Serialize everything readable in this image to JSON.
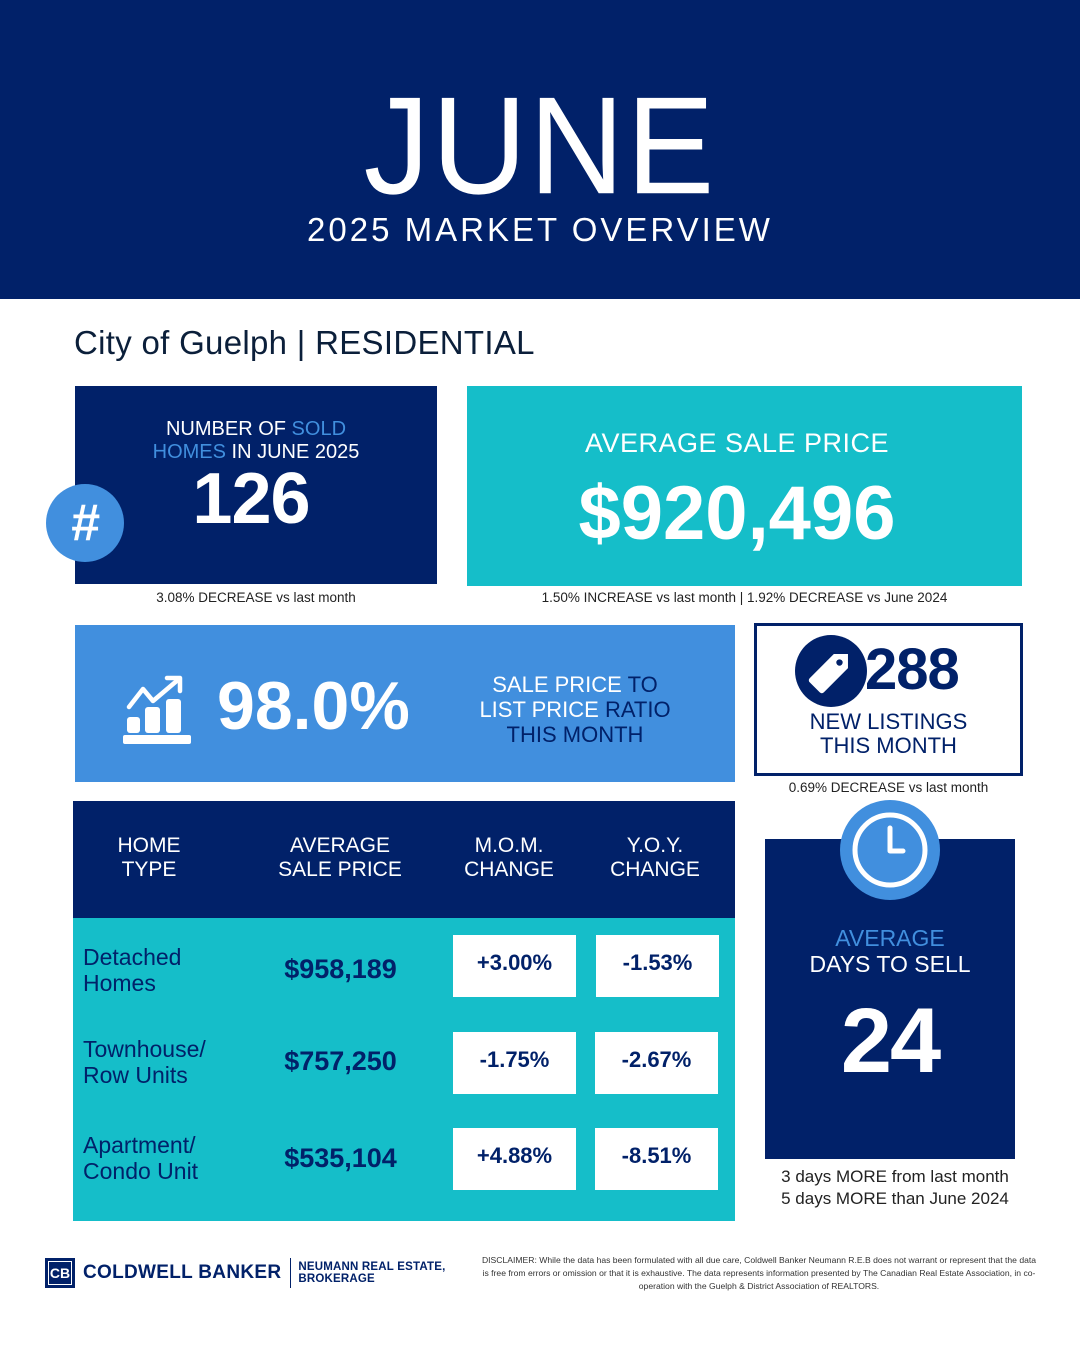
{
  "header": {
    "month": "JUNE",
    "subtitle": "2025 MARKET OVERVIEW"
  },
  "region": "City of Guelph | RESIDENTIAL",
  "sold": {
    "label_parts": [
      "NUMBER OF ",
      "SOLD",
      "HOMES",
      " IN JUNE 2025"
    ],
    "value": "126",
    "icon": "hash-icon",
    "note": "3.08% DECREASE vs last month"
  },
  "avg_price": {
    "label": "AVERAGE SALE PRICE",
    "value": "$920,496",
    "note": "1.50% INCREASE vs last month | 1.92% DECREASE vs June 2024"
  },
  "ratio": {
    "value": "98.0%",
    "icon": "chart-growth-icon",
    "label_parts": [
      "SALE PRICE ",
      "TO",
      "LIST PRICE ",
      "RATIO",
      "THIS MONTH"
    ]
  },
  "listings": {
    "value": "288",
    "icon": "price-tag-icon",
    "label_line1": "NEW LISTINGS",
    "label_line2": "THIS MONTH",
    "note": "0.69% DECREASE vs last month"
  },
  "table": {
    "headers": [
      {
        "line1": "HOME",
        "line2": "TYPE"
      },
      {
        "line1": "AVERAGE",
        "line2": "SALE PRICE"
      },
      {
        "line1": "M.O.M.",
        "line2": "CHANGE"
      },
      {
        "line1": "Y.O.Y.",
        "line2": "CHANGE"
      }
    ],
    "rows": [
      {
        "type_line1": "Detached",
        "type_line2": "Homes",
        "price": "$958,189",
        "mom": "+3.00%",
        "yoy": "-1.53%"
      },
      {
        "type_line1": "Townhouse/",
        "type_line2": "Row Units",
        "price": "$757,250",
        "mom": "-1.75%",
        "yoy": "-2.67%"
      },
      {
        "type_line1": "Apartment/",
        "type_line2": "Condo Unit",
        "price": "$535,104",
        "mom": "+4.88%",
        "yoy": "-8.51%"
      }
    ]
  },
  "days": {
    "icon": "clock-icon",
    "label_line1": "AVERAGE",
    "label_line2": "DAYS TO SELL",
    "value": "24",
    "note_line1": "3 days MORE from last month",
    "note_line2": "5 days MORE than June 2024"
  },
  "footer": {
    "logo_mark": "CB",
    "brand": "COLDWELL BANKER",
    "office_line1": "NEUMANN REAL ESTATE,",
    "office_line2": "BROKERAGE",
    "disclaimer": "DISCLAIMER: While the data has been formulated with all due care, Coldwell Banker Neumann  R.E.B does not warrant or represent that the data is free from errors or omission or that it is exhaustive. The data represents information presented by The Canadian Real Estate Association, in co-operation with the Guelph & District Association of REALTORS."
  },
  "colors": {
    "navy": "#012169",
    "teal": "#15bec9",
    "blue": "#418fde",
    "white": "#ffffff"
  }
}
